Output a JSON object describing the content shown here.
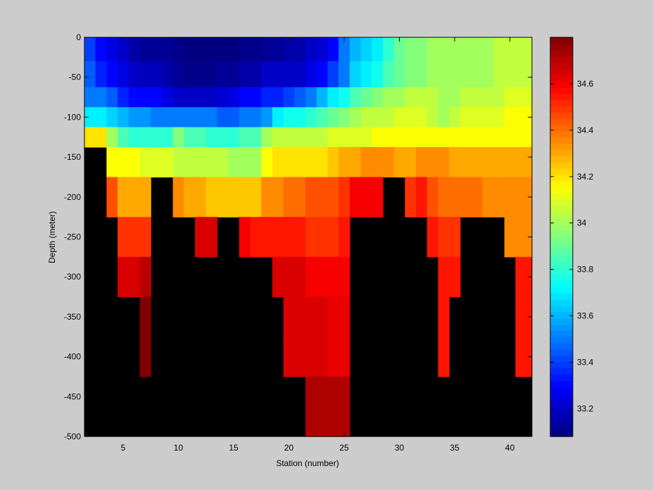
{
  "chart_data": {
    "type": "heatmap",
    "xlabel": "Station (number)",
    "ylabel": "Depth (meter)",
    "xlim": [
      1.5,
      42.0
    ],
    "ylim": [
      -500,
      0
    ],
    "x_ticks": [
      5,
      10,
      15,
      20,
      25,
      30,
      35,
      40
    ],
    "y_ticks": [
      0,
      -50,
      -100,
      -150,
      -200,
      -250,
      -300,
      -350,
      -400,
      -450,
      -500
    ],
    "colorbar": {
      "colormap": "jet",
      "range": [
        33.08,
        34.8
      ],
      "ticks": [
        33.2,
        33.4,
        33.6,
        33.8,
        34,
        34.2,
        34.4,
        34.6
      ]
    },
    "missing_color": "#000000",
    "stations": [
      2,
      3,
      4,
      5,
      6,
      7,
      8,
      9,
      10,
      11,
      12,
      13,
      14,
      15,
      16,
      17,
      18,
      19,
      20,
      21,
      22,
      23,
      24,
      25,
      26,
      27,
      28,
      29,
      30,
      31,
      32,
      33,
      34,
      35,
      36,
      37,
      38,
      39,
      40,
      41
    ],
    "depth_bins": [
      -10,
      -50,
      -75,
      -100,
      -125,
      -150,
      -200,
      -250,
      -300,
      -350,
      -400,
      -450,
      -500
    ],
    "values_by_depth": [
      [
        33.4,
        33.3,
        33.25,
        33.2,
        33.15,
        33.12,
        33.12,
        33.12,
        33.1,
        33.08,
        33.08,
        33.08,
        33.08,
        33.08,
        33.1,
        33.1,
        33.12,
        33.12,
        33.15,
        33.15,
        33.2,
        33.22,
        33.3,
        33.5,
        33.6,
        33.65,
        33.7,
        33.8,
        33.9,
        33.95,
        33.95,
        34.0,
        34.0,
        34.0,
        34.0,
        34.0,
        34.0,
        34.05,
        34.05,
        34.05
      ],
      [
        33.45,
        33.35,
        33.3,
        33.25,
        33.2,
        33.18,
        33.18,
        33.15,
        33.12,
        33.1,
        33.1,
        33.1,
        33.12,
        33.12,
        33.15,
        33.15,
        33.2,
        33.2,
        33.2,
        33.2,
        33.25,
        33.3,
        33.4,
        33.5,
        33.65,
        33.7,
        33.75,
        33.85,
        33.9,
        33.95,
        33.95,
        34.0,
        34.0,
        34.0,
        34.0,
        34.0,
        34.0,
        34.05,
        34.05,
        34.05
      ],
      [
        33.5,
        33.5,
        33.45,
        33.35,
        33.3,
        33.3,
        33.3,
        33.25,
        33.2,
        33.2,
        33.2,
        33.2,
        33.22,
        33.25,
        33.3,
        33.3,
        33.35,
        33.35,
        33.4,
        33.45,
        33.5,
        33.6,
        33.7,
        33.75,
        33.85,
        33.9,
        33.95,
        34.0,
        34.0,
        34.05,
        34.05,
        34.05,
        34.0,
        34.0,
        34.05,
        34.05,
        34.05,
        34.05,
        34.1,
        34.1
      ],
      [
        33.7,
        33.7,
        33.65,
        33.6,
        33.55,
        33.55,
        33.5,
        33.5,
        33.5,
        33.5,
        33.5,
        33.5,
        33.45,
        33.45,
        33.5,
        33.5,
        33.55,
        33.7,
        33.75,
        33.75,
        33.8,
        33.85,
        33.9,
        33.95,
        34.0,
        34.05,
        34.05,
        34.05,
        34.1,
        34.1,
        34.1,
        34.05,
        34.0,
        34.05,
        34.1,
        34.1,
        34.1,
        34.1,
        34.15,
        34.15
      ],
      [
        34.2,
        34.2,
        34.0,
        33.85,
        33.8,
        33.8,
        33.8,
        33.8,
        33.95,
        33.85,
        33.85,
        33.8,
        33.8,
        33.8,
        33.85,
        33.85,
        34.0,
        34.05,
        34.05,
        34.05,
        34.05,
        34.05,
        34.1,
        34.1,
        34.1,
        34.1,
        34.15,
        34.15,
        34.15,
        34.15,
        34.15,
        34.15,
        34.15,
        34.15,
        34.15,
        34.15,
        34.15,
        34.15,
        34.15,
        34.15
      ],
      [
        null,
        null,
        34.15,
        34.15,
        34.15,
        34.1,
        34.1,
        34.1,
        34.05,
        34.05,
        34.05,
        34.05,
        34.05,
        34.0,
        34.0,
        34.0,
        34.15,
        34.2,
        34.2,
        34.2,
        34.2,
        34.2,
        34.25,
        34.3,
        34.3,
        34.35,
        34.35,
        34.35,
        34.3,
        34.3,
        34.35,
        34.35,
        34.35,
        34.3,
        34.3,
        34.3,
        34.3,
        34.3,
        34.3,
        34.3
      ],
      [
        null,
        null,
        34.45,
        34.3,
        34.3,
        34.3,
        null,
        null,
        34.35,
        34.3,
        34.3,
        34.25,
        34.25,
        34.25,
        34.25,
        34.25,
        34.35,
        34.35,
        34.4,
        34.4,
        34.45,
        34.45,
        34.45,
        34.5,
        34.6,
        34.6,
        34.6,
        null,
        null,
        34.5,
        34.55,
        34.45,
        34.4,
        34.4,
        34.4,
        34.4,
        34.35,
        34.35,
        34.35,
        34.35
      ],
      [
        null,
        null,
        null,
        34.5,
        34.5,
        34.5,
        null,
        null,
        null,
        null,
        34.65,
        34.65,
        null,
        null,
        34.6,
        34.55,
        34.55,
        34.55,
        34.55,
        34.55,
        34.5,
        34.5,
        34.5,
        34.55,
        null,
        null,
        null,
        null,
        null,
        null,
        null,
        34.55,
        34.5,
        34.5,
        null,
        null,
        null,
        null,
        34.35,
        34.35
      ],
      [
        null,
        null,
        null,
        34.65,
        34.65,
        34.7,
        null,
        null,
        null,
        null,
        null,
        null,
        null,
        null,
        null,
        null,
        null,
        34.65,
        34.65,
        34.65,
        34.6,
        34.6,
        34.6,
        34.6,
        null,
        null,
        null,
        null,
        null,
        null,
        null,
        null,
        34.55,
        34.55,
        null,
        null,
        null,
        null,
        null,
        34.55
      ],
      [
        null,
        null,
        null,
        null,
        null,
        34.8,
        null,
        null,
        null,
        null,
        null,
        null,
        null,
        null,
        null,
        null,
        null,
        null,
        34.65,
        34.65,
        34.65,
        34.65,
        34.62,
        34.62,
        null,
        null,
        null,
        null,
        null,
        null,
        null,
        null,
        34.55,
        null,
        null,
        null,
        null,
        null,
        null,
        34.55
      ],
      [
        null,
        null,
        null,
        null,
        null,
        34.8,
        null,
        null,
        null,
        null,
        null,
        null,
        null,
        null,
        null,
        null,
        null,
        null,
        34.65,
        34.65,
        34.65,
        34.65,
        34.62,
        34.62,
        null,
        null,
        null,
        null,
        null,
        null,
        null,
        null,
        34.55,
        null,
        null,
        null,
        null,
        null,
        null,
        34.55
      ],
      [
        null,
        null,
        null,
        null,
        null,
        null,
        null,
        null,
        null,
        null,
        null,
        null,
        null,
        null,
        null,
        null,
        null,
        null,
        null,
        null,
        34.72,
        34.72,
        34.72,
        34.72,
        null,
        null,
        null,
        null,
        null,
        null,
        null,
        null,
        null,
        null,
        null,
        null,
        null,
        null,
        null,
        null
      ],
      [
        null,
        null,
        null,
        null,
        null,
        null,
        null,
        null,
        null,
        null,
        null,
        null,
        null,
        null,
        null,
        null,
        null,
        null,
        null,
        null,
        34.72,
        34.72,
        34.72,
        34.72,
        null,
        null,
        null,
        null,
        null,
        null,
        null,
        null,
        null,
        null,
        null,
        null,
        null,
        null,
        null,
        null
      ]
    ]
  }
}
